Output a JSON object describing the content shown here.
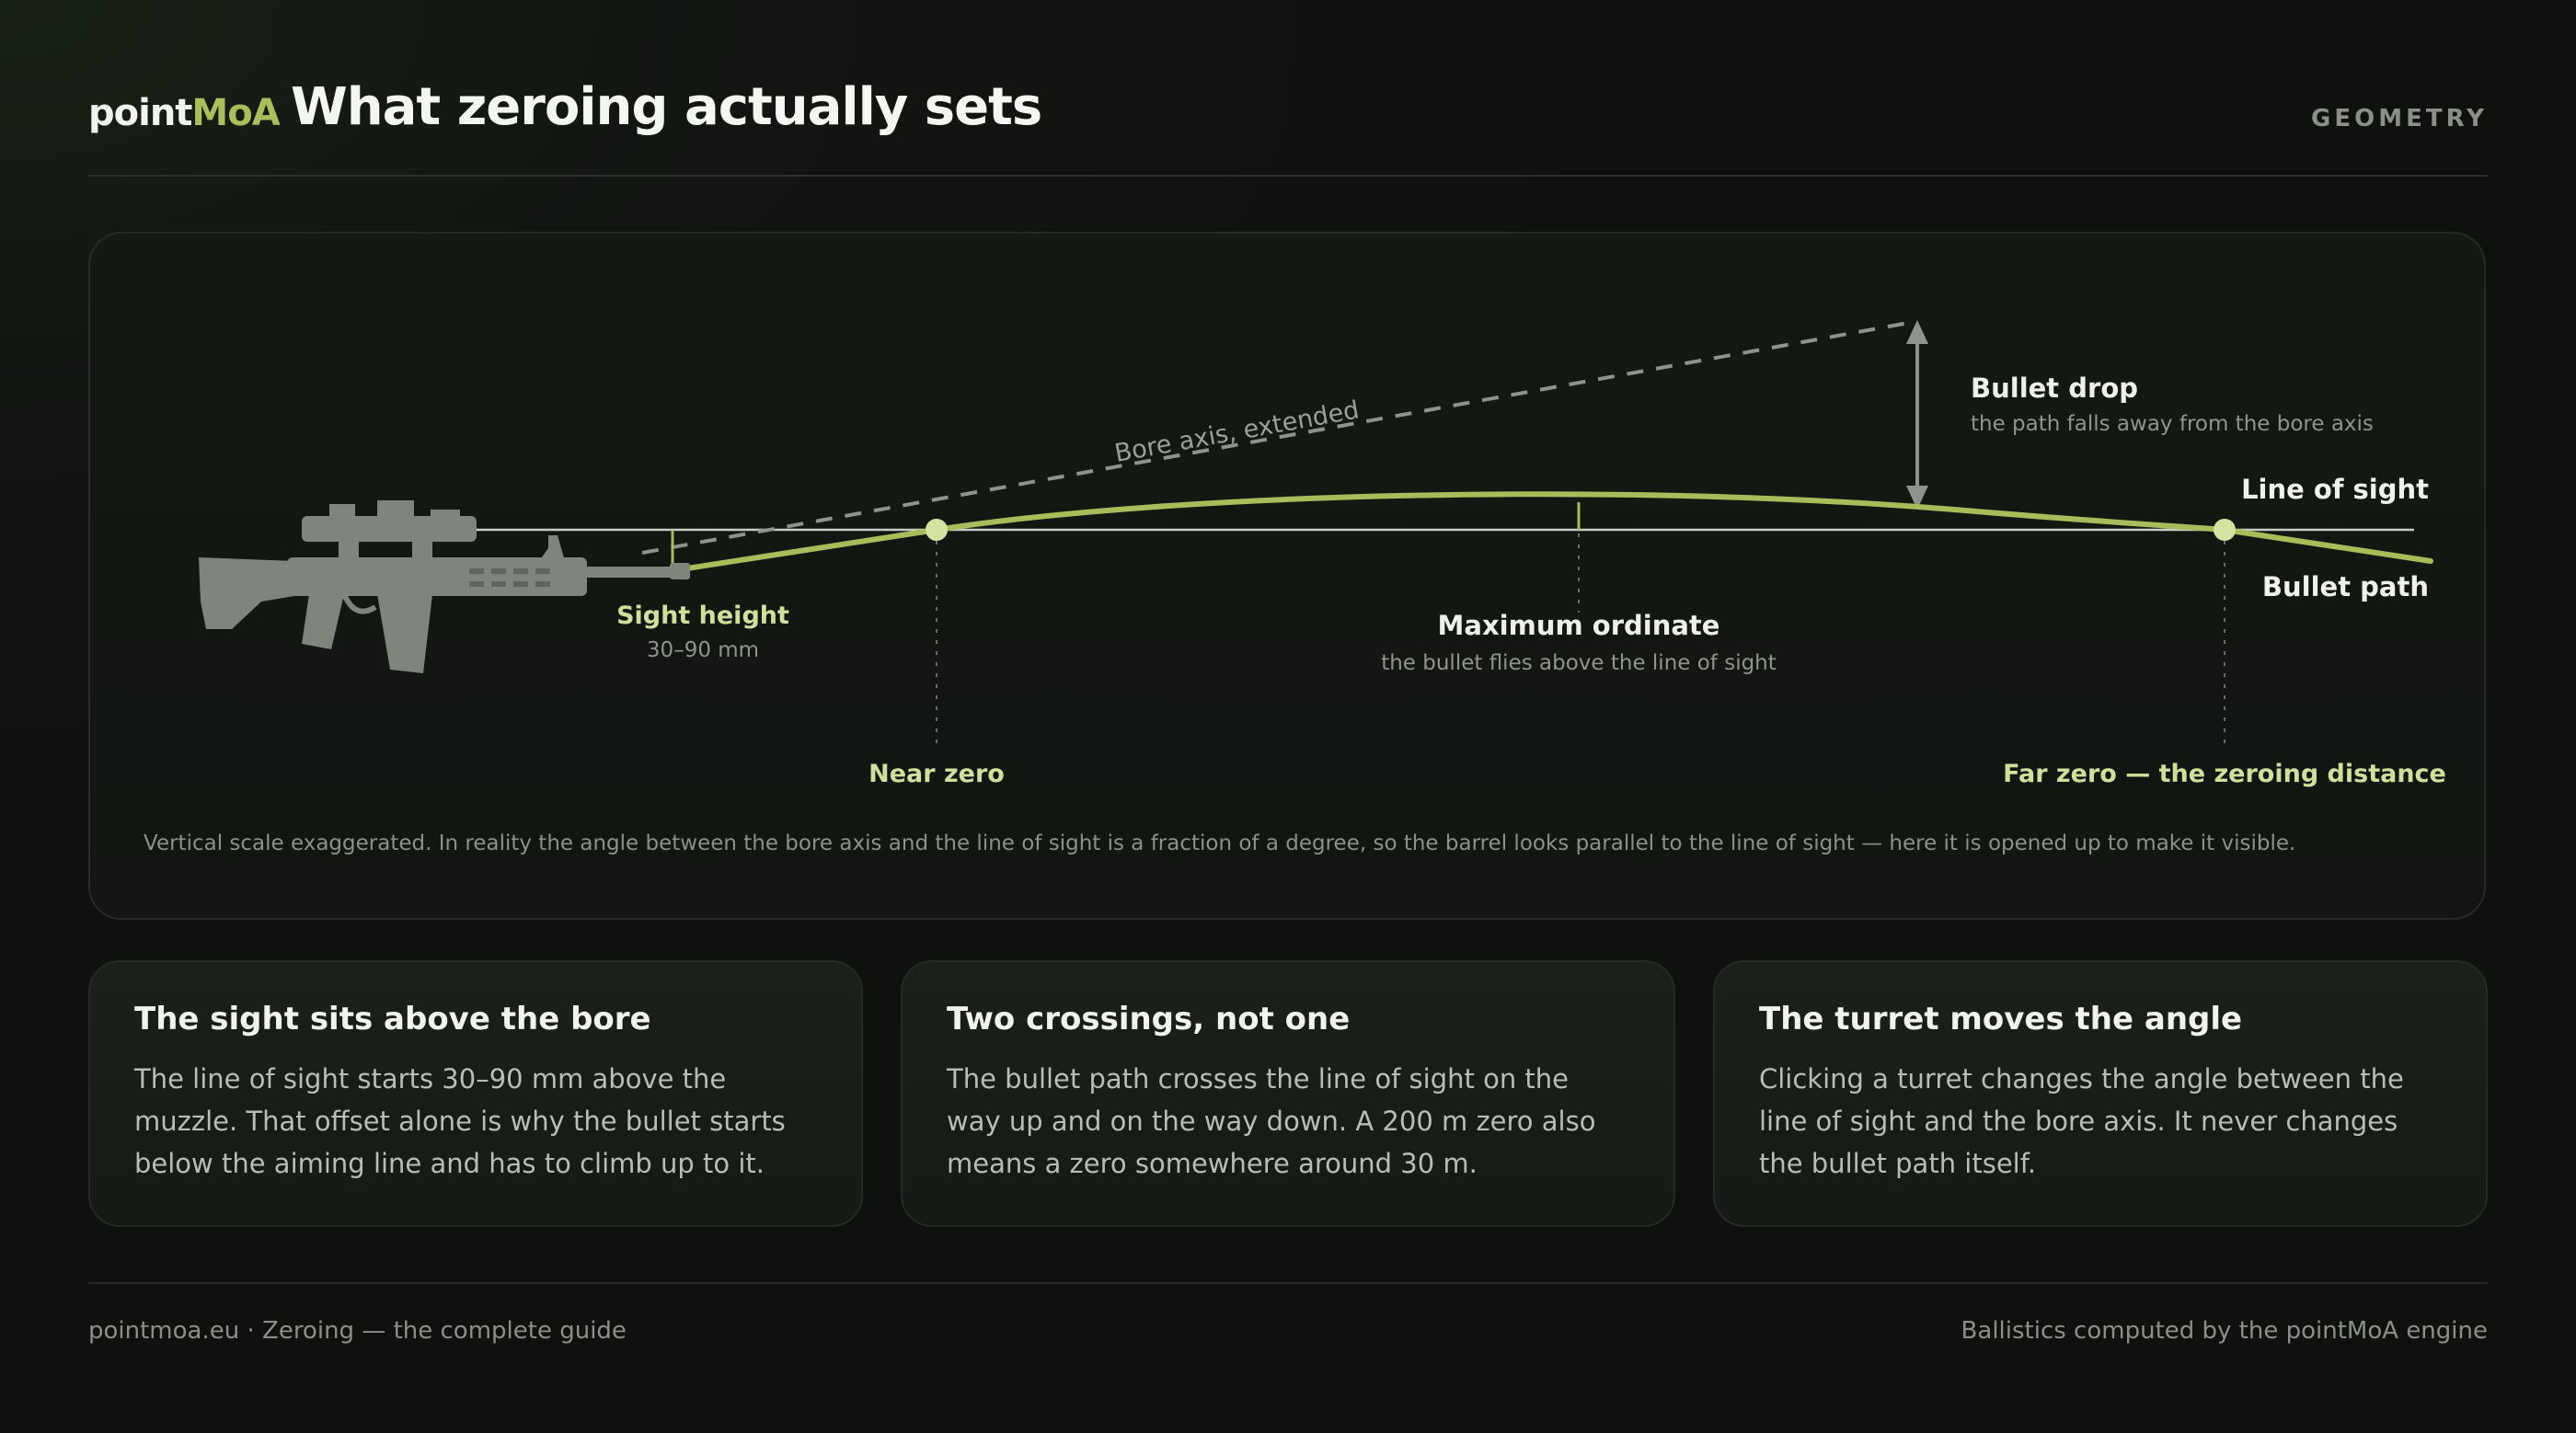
{
  "header": {
    "brand_main": "point",
    "brand_accent": "MoA",
    "title": "What zeroing actually sets",
    "section": "GEOMETRY"
  },
  "diagram": {
    "labels": {
      "bore_axis": "Bore axis, extended",
      "bullet_drop_title": "Bullet drop",
      "bullet_drop_sub": "the path falls away from the bore axis",
      "line_of_sight": "Line of sight",
      "bullet_path": "Bullet path",
      "sight_height_title": "Sight height",
      "sight_height_sub": "30–90 mm",
      "max_ordinate_title": "Maximum ordinate",
      "max_ordinate_sub": "the bullet flies above the line of sight",
      "near_zero": "Near zero",
      "far_zero": "Far zero — the zeroing distance"
    },
    "caption": "Vertical scale exaggerated. In reality the angle between the bore axis and the line of sight is a fraction of a degree, so the barrel looks parallel to the line of sight — here it is opened up to make it visible.",
    "colors": {
      "bullet_path": "#a6bd5a",
      "zero_point": "#d3e3a2",
      "line_of_sight": "#c9cdc4",
      "bore_axis": "#8e938b",
      "rifle": "#7f857d",
      "accent_label": "#cfe09a"
    }
  },
  "cards": [
    {
      "title": "The sight sits above the bore",
      "body": "The line of sight starts 30–90 mm above the muzzle. That offset alone is why the bullet starts below the aiming line and has to climb up to it."
    },
    {
      "title": "Two crossings, not one",
      "body": "The bullet path crosses the line of sight on the way up and on the way down. A 200 m zero also means a zero somewhere around 30 m."
    },
    {
      "title": "The turret moves the angle",
      "body": "Clicking a turret changes the angle between the line of sight and the bore axis. It never changes the bullet path itself."
    }
  ],
  "footer": {
    "left": "pointmoa.eu · Zeroing — the complete guide",
    "right": "Ballistics computed by the pointMoA engine"
  }
}
